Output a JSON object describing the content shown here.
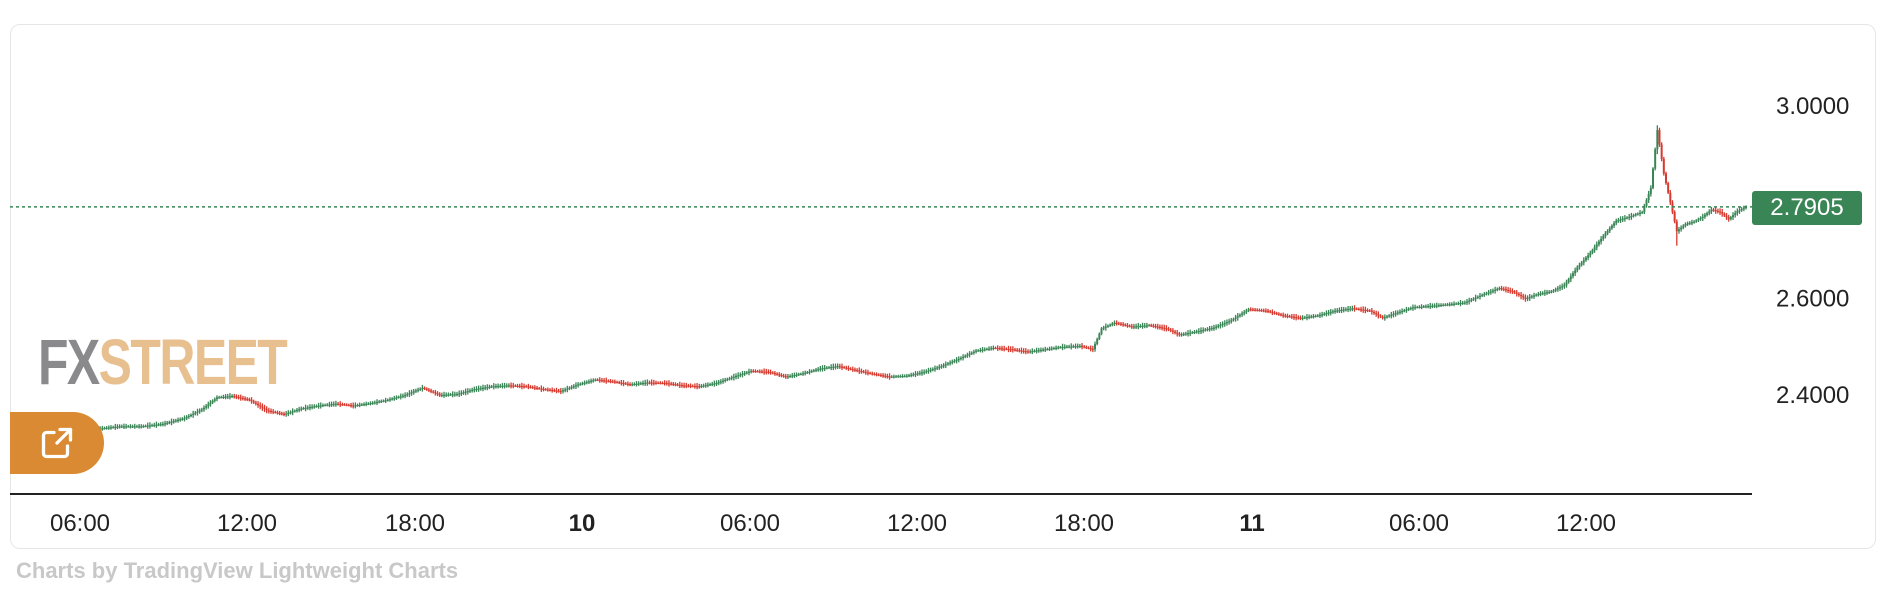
{
  "chart_data": {
    "type": "candlestick",
    "x_ticks": [
      {
        "label": "06:00",
        "bold": false
      },
      {
        "label": "12:00",
        "bold": false
      },
      {
        "label": "18:00",
        "bold": false
      },
      {
        "label": "10",
        "bold": true
      },
      {
        "label": "06:00",
        "bold": false
      },
      {
        "label": "12:00",
        "bold": false
      },
      {
        "label": "18:00",
        "bold": false
      },
      {
        "label": "11",
        "bold": true
      },
      {
        "label": "06:00",
        "bold": false
      },
      {
        "label": "12:00",
        "bold": false
      }
    ],
    "y_ticks": [
      "3.0000",
      "2.6000",
      "2.4000"
    ],
    "y_tick_values": [
      3.0,
      2.6,
      2.4
    ],
    "ylim": [
      2.2,
      3.1
    ],
    "last_price": "2.7905",
    "last_price_value": 2.7905,
    "grid": false,
    "up_color": "#3a8556",
    "down_color": "#d63a2f",
    "close_path": [
      [
        0,
        2.33
      ],
      [
        10,
        2.335
      ],
      [
        20,
        2.335
      ],
      [
        30,
        2.34
      ],
      [
        40,
        2.352
      ],
      [
        48,
        2.37
      ],
      [
        55,
        2.395
      ],
      [
        62,
        2.398
      ],
      [
        70,
        2.39
      ],
      [
        78,
        2.368
      ],
      [
        86,
        2.36
      ],
      [
        94,
        2.372
      ],
      [
        102,
        2.378
      ],
      [
        110,
        2.382
      ],
      [
        118,
        2.378
      ],
      [
        126,
        2.383
      ],
      [
        134,
        2.39
      ],
      [
        142,
        2.4
      ],
      [
        150,
        2.415
      ],
      [
        158,
        2.4
      ],
      [
        166,
        2.402
      ],
      [
        174,
        2.412
      ],
      [
        182,
        2.418
      ],
      [
        190,
        2.42
      ],
      [
        198,
        2.418
      ],
      [
        206,
        2.412
      ],
      [
        214,
        2.408
      ],
      [
        222,
        2.422
      ],
      [
        230,
        2.432
      ],
      [
        238,
        2.428
      ],
      [
        246,
        2.422
      ],
      [
        254,
        2.426
      ],
      [
        262,
        2.425
      ],
      [
        270,
        2.42
      ],
      [
        278,
        2.418
      ],
      [
        286,
        2.425
      ],
      [
        294,
        2.438
      ],
      [
        302,
        2.45
      ],
      [
        310,
        2.448
      ],
      [
        318,
        2.438
      ],
      [
        326,
        2.445
      ],
      [
        334,
        2.455
      ],
      [
        342,
        2.46
      ],
      [
        350,
        2.452
      ],
      [
        358,
        2.444
      ],
      [
        366,
        2.438
      ],
      [
        374,
        2.44
      ],
      [
        382,
        2.448
      ],
      [
        390,
        2.46
      ],
      [
        398,
        2.475
      ],
      [
        406,
        2.492
      ],
      [
        414,
        2.498
      ],
      [
        422,
        2.495
      ],
      [
        430,
        2.49
      ],
      [
        438,
        2.495
      ],
      [
        446,
        2.5
      ],
      [
        454,
        2.502
      ],
      [
        460,
        2.495
      ],
      [
        464,
        2.538
      ],
      [
        470,
        2.55
      ],
      [
        478,
        2.542
      ],
      [
        486,
        2.545
      ],
      [
        494,
        2.538
      ],
      [
        500,
        2.525
      ],
      [
        508,
        2.532
      ],
      [
        516,
        2.54
      ],
      [
        524,
        2.555
      ],
      [
        532,
        2.578
      ],
      [
        540,
        2.575
      ],
      [
        548,
        2.565
      ],
      [
        556,
        2.56
      ],
      [
        564,
        2.565
      ],
      [
        572,
        2.575
      ],
      [
        580,
        2.58
      ],
      [
        588,
        2.575
      ],
      [
        594,
        2.56
      ],
      [
        600,
        2.57
      ],
      [
        608,
        2.582
      ],
      [
        616,
        2.585
      ],
      [
        624,
        2.588
      ],
      [
        632,
        2.592
      ],
      [
        640,
        2.608
      ],
      [
        648,
        2.622
      ],
      [
        654,
        2.615
      ],
      [
        660,
        2.6
      ],
      [
        666,
        2.61
      ],
      [
        672,
        2.615
      ],
      [
        678,
        2.628
      ],
      [
        684,
        2.665
      ],
      [
        690,
        2.695
      ],
      [
        696,
        2.73
      ],
      [
        702,
        2.762
      ],
      [
        708,
        2.77
      ],
      [
        714,
        2.78
      ],
      [
        718,
        2.83
      ],
      [
        721,
        2.95
      ],
      [
        724,
        2.86
      ],
      [
        727,
        2.8
      ],
      [
        730,
        2.74
      ],
      [
        734,
        2.755
      ],
      [
        738,
        2.76
      ],
      [
        742,
        2.77
      ],
      [
        746,
        2.785
      ],
      [
        750,
        2.78
      ],
      [
        754,
        2.765
      ],
      [
        758,
        2.782
      ],
      [
        762,
        2.7905
      ]
    ]
  },
  "logo": {
    "fx": "FX",
    "street": "STREET"
  },
  "footer": "Charts by TradingView Lightweight Charts",
  "open_button": {
    "icon": "external-link-icon"
  }
}
